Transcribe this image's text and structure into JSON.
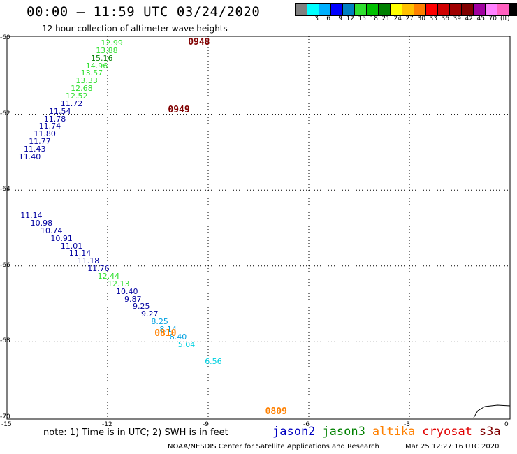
{
  "header": {
    "title": "00:00 – 11:59 UTC 03/24/2020",
    "subtitle": "12 hour collection of altimeter wave heights"
  },
  "colorbar": {
    "colors": [
      "#808080",
      "#00ffff",
      "#00b0ff",
      "#0000ff",
      "#0080c0",
      "#30e030",
      "#00c000",
      "#008000",
      "#ffff00",
      "#ffc000",
      "#ff8000",
      "#ff0000",
      "#d00000",
      "#a00000",
      "#800000",
      "#a000a0",
      "#ff80ff",
      "#ff60c0",
      "#000000"
    ],
    "labels": [
      "3",
      "6",
      "9",
      "12",
      "15",
      "18",
      "21",
      "24",
      "27",
      "30",
      "33",
      "36",
      "39",
      "42",
      "45",
      "70"
    ],
    "unit": "(ft)"
  },
  "axes": {
    "y_ticks": [
      "-60",
      "-62",
      "-64",
      "-66",
      "-68",
      "-70"
    ],
    "x_ticks": [
      "-15",
      "-12",
      "-9",
      "-6",
      "-3",
      "0"
    ]
  },
  "pass_labels": [
    {
      "text": "0948",
      "color": "#800000",
      "lon": -9.6,
      "lat": -60.0
    },
    {
      "text": "0949",
      "color": "#800000",
      "lon": -10.2,
      "lat": -61.78
    },
    {
      "text": "0810",
      "color": "#ff8000",
      "lon": -10.6,
      "lat": -67.68
    },
    {
      "text": "0809",
      "color": "#ff8000",
      "lon": -7.3,
      "lat": -69.75
    }
  ],
  "observations": [
    {
      "text": "12.99",
      "color": "#30e030",
      "lon": -12.2,
      "lat": -60.0
    },
    {
      "text": "13.88",
      "color": "#30e030",
      "lon": -12.35,
      "lat": -60.2
    },
    {
      "text": "15.16",
      "color": "#008000",
      "lon": -12.5,
      "lat": -60.4
    },
    {
      "text": "14.96",
      "color": "#30e030",
      "lon": -12.65,
      "lat": -60.6
    },
    {
      "text": "13.57",
      "color": "#30e030",
      "lon": -12.8,
      "lat": -60.8
    },
    {
      "text": "13.33",
      "color": "#30e030",
      "lon": -12.95,
      "lat": -61.0
    },
    {
      "text": "12.68",
      "color": "#30e030",
      "lon": -13.1,
      "lat": -61.2
    },
    {
      "text": "12.52",
      "color": "#30e030",
      "lon": -13.25,
      "lat": -61.4
    },
    {
      "text": "11.72",
      "color": "#0000a0",
      "lon": -13.4,
      "lat": -61.6
    },
    {
      "text": "11.54",
      "color": "#0000a0",
      "lon": -13.75,
      "lat": -61.8
    },
    {
      "text": "11.78",
      "color": "#0000a0",
      "lon": -13.9,
      "lat": -62.0
    },
    {
      "text": "11.74",
      "color": "#0000a0",
      "lon": -14.05,
      "lat": -62.2
    },
    {
      "text": "11.80",
      "color": "#0000a0",
      "lon": -14.2,
      "lat": -62.4
    },
    {
      "text": "11.77",
      "color": "#0000a0",
      "lon": -14.35,
      "lat": -62.6
    },
    {
      "text": "11.43",
      "color": "#0000a0",
      "lon": -14.5,
      "lat": -62.8
    },
    {
      "text": "11.40",
      "color": "#0000a0",
      "lon": -14.65,
      "lat": -63.0
    },
    {
      "text": "11.14",
      "color": "#0000a0",
      "lon": -14.6,
      "lat": -64.55
    },
    {
      "text": "10.98",
      "color": "#0000a0",
      "lon": -14.3,
      "lat": -64.75
    },
    {
      "text": "10.74",
      "color": "#0000a0",
      "lon": -14.0,
      "lat": -64.95
    },
    {
      "text": "10.91",
      "color": "#0000a0",
      "lon": -13.7,
      "lat": -65.15
    },
    {
      "text": "11.01",
      "color": "#0000a0",
      "lon": -13.4,
      "lat": -65.35
    },
    {
      "text": "11.14",
      "color": "#0000a0",
      "lon": -13.15,
      "lat": -65.55
    },
    {
      "text": "11.18",
      "color": "#0000a0",
      "lon": -12.9,
      "lat": -65.75
    },
    {
      "text": "11.76",
      "color": "#0000a0",
      "lon": -12.6,
      "lat": -65.95
    },
    {
      "text": "12.44",
      "color": "#30e030",
      "lon": -12.3,
      "lat": -66.15
    },
    {
      "text": "12.13",
      "color": "#30e030",
      "lon": -12.0,
      "lat": -66.35
    },
    {
      "text": "10.40",
      "color": "#0000a0",
      "lon": -11.75,
      "lat": -66.55
    },
    {
      "text": "9.87",
      "color": "#0000a0",
      "lon": -11.5,
      "lat": -66.75
    },
    {
      "text": "9.25",
      "color": "#0000a0",
      "lon": -11.25,
      "lat": -66.95
    },
    {
      "text": "9.27",
      "color": "#0000a0",
      "lon": -11.0,
      "lat": -67.15
    },
    {
      "text": "8.25",
      "color": "#00a0e0",
      "lon": -10.7,
      "lat": -67.35
    },
    {
      "text": "8.14",
      "color": "#00a0e0",
      "lon": -10.45,
      "lat": -67.55
    },
    {
      "text": "8.40",
      "color": "#00a0e0",
      "lon": -10.15,
      "lat": -67.75
    },
    {
      "text": "5.04",
      "color": "#00d0e0",
      "lon": -9.9,
      "lat": -67.95
    },
    {
      "text": "6.56",
      "color": "#00d0e0",
      "lon": -9.1,
      "lat": -68.4
    }
  ],
  "note": "note: 1) Time is in UTC; 2) SWH is in feet",
  "legend": [
    {
      "text": "jason2",
      "color": "#0000c0"
    },
    {
      "text": "jason3",
      "color": "#008000"
    },
    {
      "text": "altika",
      "color": "#ff8000"
    },
    {
      "text": "cryosat",
      "color": "#e00000"
    },
    {
      "text": "s3a",
      "color": "#800000"
    }
  ],
  "footer": {
    "left": "NOAA/NESDIS Center for Satellite Applications and Research",
    "right": "Mar 25 12:27:16 UTC 2020"
  }
}
